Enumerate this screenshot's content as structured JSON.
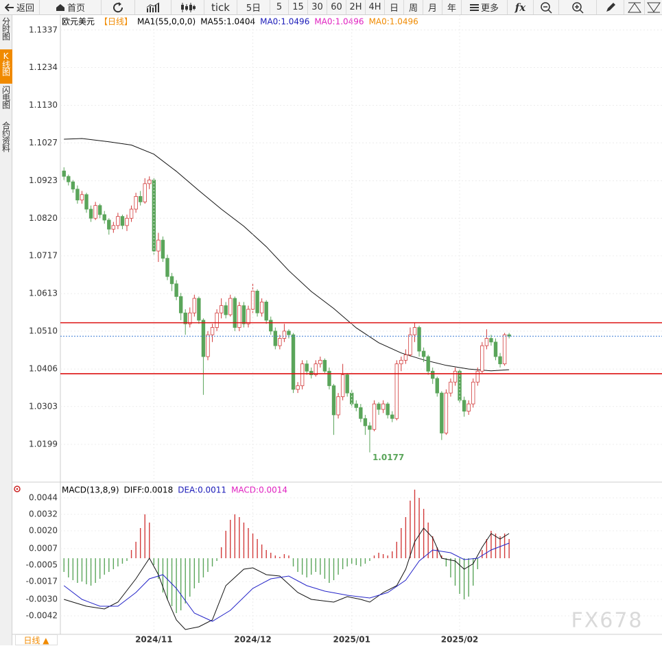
{
  "toolbar": [
    "返回",
    "首页",
    "tick",
    "5日",
    "5",
    "15",
    "30",
    "60",
    "2H",
    "4H",
    "日",
    "周",
    "月",
    "年",
    "更多",
    "fx"
  ],
  "sidebar": [
    "分时图",
    "K线图",
    "闪电图",
    "合约资料"
  ],
  "footer_tab": "日线 ▲",
  "watermark": "FX678",
  "chart_data": [
    {
      "type": "candlestick",
      "header": [
        {
          "text": "欧元美元",
          "color": "#000000"
        },
        {
          "text": "【日线】",
          "color": "#f08a00"
        },
        {
          "text": "MA1(55,0,0,0)",
          "color": "#000000"
        },
        {
          "text": "MA55:1.0404",
          "color": "#000000"
        },
        {
          "text": "MA0:1.0496",
          "color": "#1a1ab8"
        },
        {
          "text": "MA0:1.0496",
          "color": "#e020c0"
        },
        {
          "text": "MA0:1.0496",
          "color": "#f08a00"
        }
      ],
      "xlim": [
        -0.8,
        133
      ],
      "ylim": [
        1.0101,
        1.1378
      ],
      "yticks": [
        1.1337,
        1.1234,
        {
          "value": 1.113,
          "label": "1.1130"
        },
        1.1027,
        1.0923,
        {
          "value": 1.082,
          "label": "1.0820"
        },
        1.0717,
        1.0613,
        {
          "value": 1.051,
          "label": "1.0510"
        },
        1.0406,
        1.0303,
        1.0199
      ],
      "grid": true,
      "up_color": "#d23a3a",
      "down_color": "#5aa55a",
      "candles": [
        [
          1.095,
          1.096,
          1.0925,
          1.0935
        ],
        [
          1.0935,
          1.094,
          1.091,
          1.092
        ],
        [
          1.092,
          1.0925,
          1.089,
          1.09
        ],
        [
          1.09,
          1.091,
          1.086,
          1.087
        ],
        [
          1.087,
          1.0895,
          1.086,
          1.0885
        ],
        [
          1.0885,
          1.089,
          1.0835,
          1.0845
        ],
        [
          1.0845,
          1.0855,
          1.081,
          1.082
        ],
        [
          1.082,
          1.0865,
          1.0815,
          1.0855
        ],
        [
          1.0855,
          1.086,
          1.082,
          1.083
        ],
        [
          1.083,
          1.084,
          1.0805,
          1.0815
        ],
        [
          1.0815,
          1.082,
          1.0775,
          1.079
        ],
        [
          1.079,
          1.081,
          1.078,
          1.08
        ],
        [
          1.08,
          1.0835,
          1.079,
          1.0825
        ],
        [
          1.0825,
          1.083,
          1.079,
          1.08
        ],
        [
          1.08,
          1.083,
          1.0785,
          1.082
        ],
        [
          1.082,
          1.0855,
          1.081,
          1.0845
        ],
        [
          1.0845,
          1.089,
          1.0835,
          1.088
        ],
        [
          1.088,
          1.0895,
          1.0855,
          1.0865
        ],
        [
          1.0865,
          1.093,
          1.086,
          1.0915
        ],
        [
          1.0915,
          1.0935,
          1.09,
          1.0925
        ],
        [
          1.0925,
          1.093,
          1.072,
          1.073
        ],
        [
          1.073,
          1.078,
          1.07,
          1.076
        ],
        [
          1.076,
          1.077,
          1.07,
          1.071
        ],
        [
          1.071,
          1.072,
          1.065,
          1.066
        ],
        [
          1.066,
          1.067,
          1.062,
          1.064
        ],
        [
          1.064,
          1.065,
          1.0595,
          1.0605
        ],
        [
          1.0605,
          1.0615,
          1.054,
          1.056
        ],
        [
          1.056,
          1.057,
          1.05,
          1.053
        ],
        [
          1.053,
          1.0575,
          1.052,
          1.056
        ],
        [
          1.056,
          1.061,
          1.055,
          1.06
        ],
        [
          1.06,
          1.0605,
          1.053,
          1.054
        ],
        [
          1.054,
          1.0545,
          1.0335,
          1.044
        ],
        [
          1.044,
          1.051,
          1.043,
          1.05
        ],
        [
          1.05,
          1.053,
          1.048,
          1.052
        ],
        [
          1.052,
          1.057,
          1.051,
          1.056
        ],
        [
          1.056,
          1.06,
          1.0545,
          1.058
        ],
        [
          1.058,
          1.059,
          1.0545,
          1.0555
        ],
        [
          1.0555,
          1.061,
          1.055,
          1.06
        ],
        [
          1.06,
          1.0605,
          1.051,
          1.052
        ],
        [
          1.052,
          1.059,
          1.051,
          1.058
        ],
        [
          1.058,
          1.059,
          1.052,
          1.053
        ],
        [
          1.053,
          1.058,
          1.052,
          1.057
        ],
        [
          1.057,
          1.064,
          1.056,
          1.062
        ],
        [
          1.062,
          1.0625,
          1.055,
          1.056
        ],
        [
          1.056,
          1.06,
          1.055,
          1.059
        ],
        [
          1.059,
          1.0595,
          1.053,
          1.054
        ],
        [
          1.054,
          1.055,
          1.05,
          1.051
        ],
        [
          1.051,
          1.052,
          1.046,
          1.047
        ],
        [
          1.047,
          1.05,
          1.046,
          1.049
        ],
        [
          1.049,
          1.053,
          1.048,
          1.051
        ],
        [
          1.051,
          1.0515,
          1.049,
          1.05
        ],
        [
          1.05,
          1.0505,
          1.034,
          1.035
        ],
        [
          1.035,
          1.037,
          1.034,
          1.036
        ],
        [
          1.036,
          1.043,
          1.035,
          1.042
        ],
        [
          1.042,
          1.043,
          1.039,
          1.04
        ],
        [
          1.04,
          1.041,
          1.038,
          1.039
        ],
        [
          1.039,
          1.043,
          1.0385,
          1.042
        ],
        [
          1.042,
          1.044,
          1.041,
          1.043
        ],
        [
          1.043,
          1.0435,
          1.0395,
          1.04
        ],
        [
          1.04,
          1.041,
          1.035,
          1.036
        ],
        [
          1.036,
          1.0365,
          1.0225,
          1.028
        ],
        [
          1.028,
          1.034,
          1.027,
          1.033
        ],
        [
          1.033,
          1.042,
          1.032,
          1.039
        ],
        [
          1.039,
          1.0395,
          1.033,
          1.034
        ],
        [
          1.034,
          1.035,
          1.03,
          1.031
        ],
        [
          1.031,
          1.032,
          1.029,
          1.03
        ],
        [
          1.03,
          1.031,
          1.026,
          1.027
        ],
        [
          1.027,
          1.028,
          1.0225,
          1.025
        ],
        [
          1.025,
          1.026,
          1.0177,
          1.024
        ],
        [
          1.024,
          1.032,
          1.0235,
          1.031
        ],
        [
          1.031,
          1.0315,
          1.028,
          1.0295
        ],
        [
          1.0295,
          1.032,
          1.0285,
          1.031
        ],
        [
          1.031,
          1.0315,
          1.027,
          1.028
        ],
        [
          1.028,
          1.029,
          1.026,
          1.027
        ],
        [
          1.027,
          1.043,
          1.0265,
          1.042
        ],
        [
          1.042,
          1.044,
          1.04,
          1.043
        ],
        [
          1.043,
          1.046,
          1.042,
          1.0445
        ],
        [
          1.0445,
          1.052,
          1.044,
          1.05
        ],
        [
          1.05,
          1.0533,
          1.048,
          1.052
        ],
        [
          1.052,
          1.0525,
          1.044,
          1.0455
        ],
        [
          1.0455,
          1.0465,
          1.0425,
          1.044
        ],
        [
          1.044,
          1.0445,
          1.039,
          1.04
        ],
        [
          1.04,
          1.041,
          1.0365,
          1.038
        ],
        [
          1.038,
          1.0385,
          1.033,
          1.034
        ],
        [
          1.034,
          1.0345,
          1.0211,
          1.023
        ],
        [
          1.023,
          1.035,
          1.0225,
          1.034
        ],
        [
          1.034,
          1.038,
          1.033,
          1.037
        ],
        [
          1.037,
          1.041,
          1.036,
          1.04
        ],
        [
          1.04,
          1.0405,
          1.031,
          1.032
        ],
        [
          1.032,
          1.033,
          1.0275,
          1.029
        ],
        [
          1.029,
          1.032,
          1.028,
          1.031
        ],
        [
          1.031,
          1.038,
          1.03,
          1.037
        ],
        [
          1.037,
          1.041,
          1.036,
          1.04
        ],
        [
          1.04,
          1.048,
          1.0395,
          1.047
        ],
        [
          1.047,
          1.0515,
          1.046,
          1.049
        ],
        [
          1.049,
          1.05,
          1.047,
          1.048
        ],
        [
          1.048,
          1.049,
          1.043,
          1.044
        ],
        [
          1.044,
          1.045,
          1.041,
          1.042
        ],
        [
          1.042,
          1.0505,
          1.0415,
          1.05
        ],
        [
          1.05,
          1.0505,
          1.049,
          1.0496
        ]
      ],
      "lines": [
        {
          "name": "MA55",
          "color": "#111111",
          "x": [
            0,
            4,
            10,
            15,
            20,
            25,
            30,
            35,
            40,
            45,
            50,
            55,
            60,
            65,
            70,
            75,
            80,
            85,
            90,
            95,
            99
          ],
          "values": [
            1.1037,
            1.1039,
            1.103,
            1.1021,
            1.0996,
            1.0949,
            1.0896,
            1.0845,
            1.0798,
            1.0742,
            1.0676,
            1.0619,
            1.0572,
            1.0519,
            1.0478,
            1.045,
            1.0431,
            1.0416,
            1.0406,
            1.0401,
            1.0404
          ]
        }
      ],
      "hlines": [
        {
          "value": 1.0533,
          "color": "#dd1111"
        },
        {
          "value": 1.0393,
          "color": "#dd1111"
        }
      ],
      "last_price": {
        "value": 1.0496,
        "color": "#3a7bd5"
      },
      "annotations": [
        {
          "x": 68,
          "value": 1.0177,
          "color": "#5aa55a"
        }
      ]
    },
    {
      "type": "macd",
      "header": [
        {
          "text": "MACD(13,8,9)",
          "color": "#000000"
        },
        {
          "text": "DIFF:0.0018",
          "color": "#000000"
        },
        {
          "text": "DEA:0.0011",
          "color": "#1a1ab8"
        },
        {
          "text": "MACD:0.0014",
          "color": "#e020c0"
        }
      ],
      "xlim": [
        -0.8,
        133
      ],
      "ylim": [
        -0.00555,
        0.00545
      ],
      "yticks": [
        0.0044,
        0.0032,
        {
          "value": 0.002,
          "label": "0.0020"
        },
        0.0007,
        -0.0005,
        -0.0017,
        {
          "value": -0.003,
          "label": "-0.0030"
        },
        -0.0042
      ],
      "xticks": [
        {
          "value": 20,
          "label": "2024/11"
        },
        {
          "value": 42,
          "label": "2024/12"
        },
        {
          "value": 64,
          "label": "2025/01"
        },
        {
          "value": 88,
          "label": "2025/02"
        }
      ],
      "grid": true,
      "up_color": "#d23a3a",
      "down_color": "#5aa55a",
      "histogram": [
        -0.001,
        -0.0014,
        -0.0016,
        -0.0018,
        -0.0017,
        -0.0019,
        -0.002,
        -0.0018,
        -0.0015,
        -0.0012,
        -0.001,
        -0.0008,
        -0.0006,
        -0.0004,
        -0.0002,
        0.0006,
        0.0012,
        0.0022,
        0.0032,
        0.0026,
        -0.0005,
        -0.0015,
        -0.0025,
        -0.003,
        -0.0035,
        -0.004,
        -0.0038,
        -0.0033,
        -0.0028,
        -0.0022,
        -0.0018,
        -0.0014,
        -0.001,
        -0.0006,
        -0.0002,
        0.0008,
        0.002,
        0.0028,
        0.0032,
        0.003,
        0.0026,
        0.0022,
        0.0018,
        0.0014,
        0.001,
        0.0006,
        0.0004,
        0.0002,
        0.0001,
        0.0003,
        0.0002,
        -0.0006,
        -0.001,
        -0.0012,
        -0.0014,
        -0.0012,
        -0.001,
        -0.0012,
        -0.0015,
        -0.0018,
        -0.0016,
        -0.0012,
        -0.0008,
        -0.0006,
        -0.0004,
        -0.0005,
        -0.0006,
        -0.0004,
        -0.0002,
        0.0002,
        0.0004,
        0.0003,
        0.0002,
        0.0005,
        0.0012,
        0.0022,
        0.003,
        0.0042,
        0.005,
        0.0044,
        0.0036,
        0.0026,
        0.0016,
        0.0008,
        0.0002,
        -0.0006,
        -0.0014,
        -0.002,
        -0.0026,
        -0.003,
        -0.0028,
        -0.002,
        -0.0008,
        0.0006,
        0.0014,
        0.002,
        0.0018,
        0.0016,
        0.0018,
        0.0014
      ],
      "lines": [
        {
          "name": "DIFF",
          "color": "#111111",
          "x": [
            0,
            5,
            9,
            12,
            16,
            18,
            19,
            21,
            23,
            25,
            27,
            30,
            33,
            36,
            40,
            42,
            45,
            48,
            52,
            55,
            60,
            63,
            66,
            68,
            71,
            74,
            76,
            78,
            80,
            82,
            84,
            87,
            89,
            91,
            93,
            95,
            97,
            99
          ],
          "values": [
            -0.003,
            -0.0035,
            -0.0037,
            -0.0032,
            -0.0015,
            -0.0005,
            0.0,
            -0.0012,
            -0.003,
            -0.0045,
            -0.0052,
            -0.005,
            -0.0045,
            -0.002,
            -0.0008,
            -0.0007,
            -0.0012,
            -0.0013,
            -0.0025,
            -0.003,
            -0.0032,
            -0.0028,
            -0.003,
            -0.0032,
            -0.0025,
            -0.002,
            -0.0008,
            0.0012,
            0.0022,
            0.0015,
            0.0,
            -0.0002,
            -0.0008,
            -0.0004,
            0.0008,
            0.0018,
            0.0014,
            0.0018
          ]
        },
        {
          "name": "DEA",
          "color": "#2323c8",
          "x": [
            0,
            4,
            8,
            12,
            16,
            19,
            22,
            25,
            29,
            33,
            37,
            42,
            46,
            50,
            54,
            58,
            63,
            68,
            72,
            76,
            79,
            82,
            86,
            89,
            92,
            95,
            99
          ],
          "values": [
            -0.002,
            -0.003,
            -0.0035,
            -0.0035,
            -0.0025,
            -0.0015,
            -0.0012,
            -0.0022,
            -0.004,
            -0.0046,
            -0.0038,
            -0.0022,
            -0.0015,
            -0.0013,
            -0.002,
            -0.0024,
            -0.0027,
            -0.0029,
            -0.0025,
            -0.0016,
            -0.0002,
            0.0006,
            0.0004,
            -0.0001,
            0.0,
            0.0006,
            0.0011
          ]
        }
      ]
    }
  ]
}
